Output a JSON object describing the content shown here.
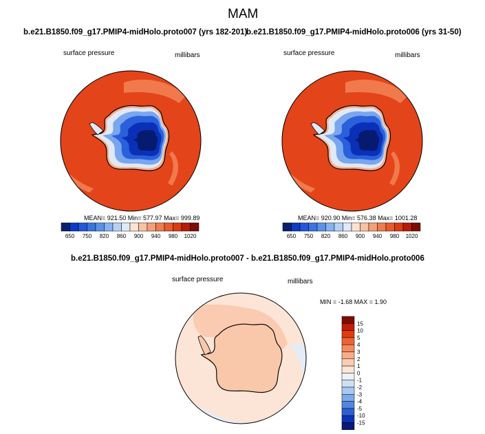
{
  "title": "MAM",
  "panels": [
    {
      "case_title": "b.e21.B1850.f09_g17.PMIP4-midHolo.proto007 (yrs 182-201)",
      "var_label": "surface pressure",
      "units": "millibars",
      "stats": "MEAN= 921.50  Min= 577.97  Max= 999.89"
    },
    {
      "case_title": "b.e21.B1850.f09_g17.PMIP4-midHolo.proto006 (yrs 31-50)",
      "var_label": "surface pressure",
      "units": "millibars",
      "stats": "MEAN= 920.90  Min= 576.38  Max= 1001.28"
    }
  ],
  "diff_panel": {
    "case_title": "b.e21.B1850.f09_g17.PMIP4-midHolo.proto007 - b.e21.B1850.f09_g17.PMIP4-midHolo.proto006",
    "var_label": "surface pressure",
    "units": "millibars",
    "stats": "MIN =  -1.68 MAX =   1.90"
  },
  "chart_data": [
    {
      "type": "heatmap",
      "title": "b.e21.B1850.f09_g17.PMIP4-midHolo.proto007 (yrs 182-201)",
      "variable": "surface pressure",
      "units": "millibars",
      "projection": "south polar stereographic",
      "mean": 921.5,
      "min": 577.97,
      "max": 999.89,
      "levels": [
        650,
        700,
        750,
        800,
        820,
        840,
        860,
        880,
        900,
        920,
        940,
        960,
        980,
        1000,
        1020
      ],
      "level_labels": [
        "650",
        "750",
        "820",
        "860",
        "900",
        "940",
        "980",
        "1020"
      ],
      "colors": [
        "#08206e",
        "#0a3ac7",
        "#2257d8",
        "#3a74e0",
        "#5a92ea",
        "#86b2f0",
        "#b4d2f6",
        "#dfeaf8",
        "#fbe2d2",
        "#f8c2a4",
        "#f59f78",
        "#ef7c4f",
        "#e95a2e",
        "#dd3c10",
        "#b81c08",
        "#7d0c02"
      ]
    },
    {
      "type": "heatmap",
      "title": "b.e21.B1850.f09_g17.PMIP4-midHolo.proto006 (yrs 31-50)",
      "variable": "surface pressure",
      "units": "millibars",
      "projection": "south polar stereographic",
      "mean": 920.9,
      "min": 576.38,
      "max": 1001.28,
      "levels": [
        650,
        700,
        750,
        800,
        820,
        840,
        860,
        880,
        900,
        920,
        940,
        960,
        980,
        1000,
        1020
      ],
      "level_labels": [
        "650",
        "750",
        "820",
        "860",
        "900",
        "940",
        "980",
        "1020"
      ],
      "colors": [
        "#08206e",
        "#0a3ac7",
        "#2257d8",
        "#3a74e0",
        "#5a92ea",
        "#86b2f0",
        "#b4d2f6",
        "#dfeaf8",
        "#fbe2d2",
        "#f8c2a4",
        "#f59f78",
        "#ef7c4f",
        "#e95a2e",
        "#dd3c10",
        "#b81c08",
        "#7d0c02"
      ]
    },
    {
      "type": "heatmap",
      "title": "b.e21.B1850.f09_g17.PMIP4-midHolo.proto007 - b.e21.B1850.f09_g17.PMIP4-midHolo.proto006",
      "variable": "surface pressure",
      "units": "millibars",
      "projection": "south polar stereographic",
      "min": -1.68,
      "max": 1.9,
      "levels": [
        15,
        10,
        5,
        4,
        3,
        2,
        1,
        0,
        -1,
        -2,
        -3,
        -4,
        -5,
        -10,
        -15
      ],
      "level_labels": [
        "15",
        "10",
        "5",
        "4",
        "3",
        "2",
        "1",
        "0",
        "-1",
        "-2",
        "-3",
        "-4",
        "-5",
        "-10",
        "-15"
      ],
      "colors": [
        "#7d0c02",
        "#c01e06",
        "#e03c10",
        "#ec6232",
        "#f38b5e",
        "#f7ad88",
        "#fbcdb0",
        "#fce5d6",
        "#eef2f8",
        "#cfe0f4",
        "#a9c8ef",
        "#7ea9e8",
        "#5486de",
        "#2b5fd2",
        "#0d33b4",
        "#081a7a"
      ]
    }
  ]
}
